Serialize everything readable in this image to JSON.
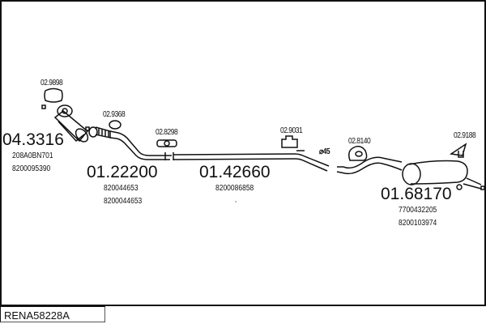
{
  "diagram_code": "RENA58228A",
  "parts": [
    {
      "ref": "02.9898"
    },
    {
      "ref": "04.3316",
      "oe": [
        "208A0BN701",
        "8200095390"
      ]
    },
    {
      "ref": "02.9368"
    },
    {
      "ref": "01.22200",
      "oe": [
        "820044653",
        "8200044653"
      ]
    },
    {
      "ref": "02.8298"
    },
    {
      "ref": "01.42660",
      "oe": [
        "8200086858"
      ]
    },
    {
      "ref": "02.9031"
    },
    {
      "ref": "02.8140"
    },
    {
      "ref": "02.9188"
    },
    {
      "ref": "01.68170",
      "oe": [
        "7700432205",
        "8200103974"
      ]
    }
  ],
  "pipe_diameter_label": "⌀45"
}
